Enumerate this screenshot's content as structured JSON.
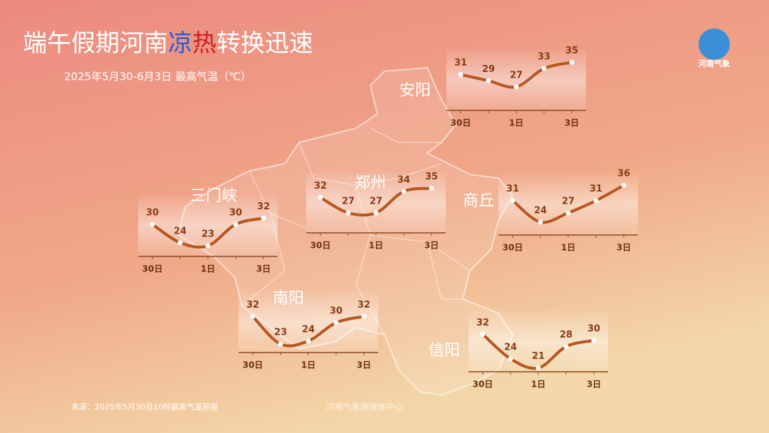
{
  "title": [
    "端午假期河南",
    "凉",
    "热",
    "转换迅速"
  ],
  "subtitle": "2025年5月30-6月3日  最高气温（℃）",
  "source": "来源：2025年5月30日10时最高气温预报",
  "credit": "河南气象融媒体中心",
  "logo": "河南气象",
  "chart_data": [
    {
      "type": "line",
      "title": "安阳",
      "categories": [
        "30日",
        null,
        "1日",
        null,
        "3日"
      ],
      "values": [
        31,
        29,
        27,
        33,
        35
      ],
      "color": "#b8561f"
    },
    {
      "type": "line",
      "title": "郑州",
      "categories": [
        "30日",
        null,
        "1日",
        null,
        "3日"
      ],
      "values": [
        32,
        27,
        27,
        34,
        35
      ],
      "color": "#b8561f"
    },
    {
      "type": "line",
      "title": "商丘",
      "categories": [
        "30日",
        null,
        "1日",
        null,
        "3日"
      ],
      "values": [
        31,
        24,
        27,
        31,
        36
      ],
      "color": "#b8561f"
    },
    {
      "type": "line",
      "title": "三门峡",
      "categories": [
        "30日",
        null,
        "1日",
        null,
        "3日"
      ],
      "values": [
        30,
        24,
        23,
        30,
        32
      ],
      "color": "#b8561f"
    },
    {
      "type": "line",
      "title": "南阳",
      "categories": [
        "30日",
        null,
        "1日",
        null,
        "3日"
      ],
      "values": [
        32,
        23,
        24,
        30,
        32
      ],
      "color": "#b8561f"
    },
    {
      "type": "line",
      "title": "信阳",
      "categories": [
        "30日",
        null,
        "1日",
        null,
        "3日"
      ],
      "values": [
        32,
        24,
        21,
        28,
        30
      ],
      "color": "#b8561f"
    }
  ]
}
